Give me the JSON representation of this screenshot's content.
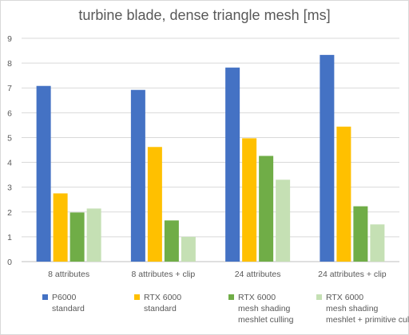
{
  "chart_data": {
    "type": "bar",
    "title": "turbine blade, dense triangle mesh [ms]",
    "xlabel": "",
    "ylabel": "",
    "ylim": [
      0,
      9
    ],
    "yticks": [
      "0",
      "1",
      "2",
      "3",
      "4",
      "5",
      "6",
      "7",
      "8",
      "9"
    ],
    "grid": true,
    "legend_position": "bottom",
    "categories": [
      "8 attributes",
      "8 attributes + clip",
      "24 attributes",
      "24 attributes + clip"
    ],
    "series": [
      {
        "name_lines": [
          "P6000",
          "standard"
        ],
        "color": "#4472c4",
        "values": [
          7.08,
          6.92,
          7.82,
          8.33
        ]
      },
      {
        "name_lines": [
          "RTX 6000",
          "standard"
        ],
        "color": "#ffc000",
        "values": [
          2.75,
          4.62,
          4.97,
          5.44
        ]
      },
      {
        "name_lines": [
          "RTX 6000",
          "mesh shading",
          "meshlet culling"
        ],
        "color": "#70ad47",
        "values": [
          1.98,
          1.66,
          4.26,
          2.23
        ]
      },
      {
        "name_lines": [
          "RTX 6000",
          "mesh shading",
          "meshlet + primitive culling"
        ],
        "color": "#c5e0b4",
        "values": [
          2.14,
          1.0,
          3.3,
          1.5
        ]
      }
    ]
  }
}
